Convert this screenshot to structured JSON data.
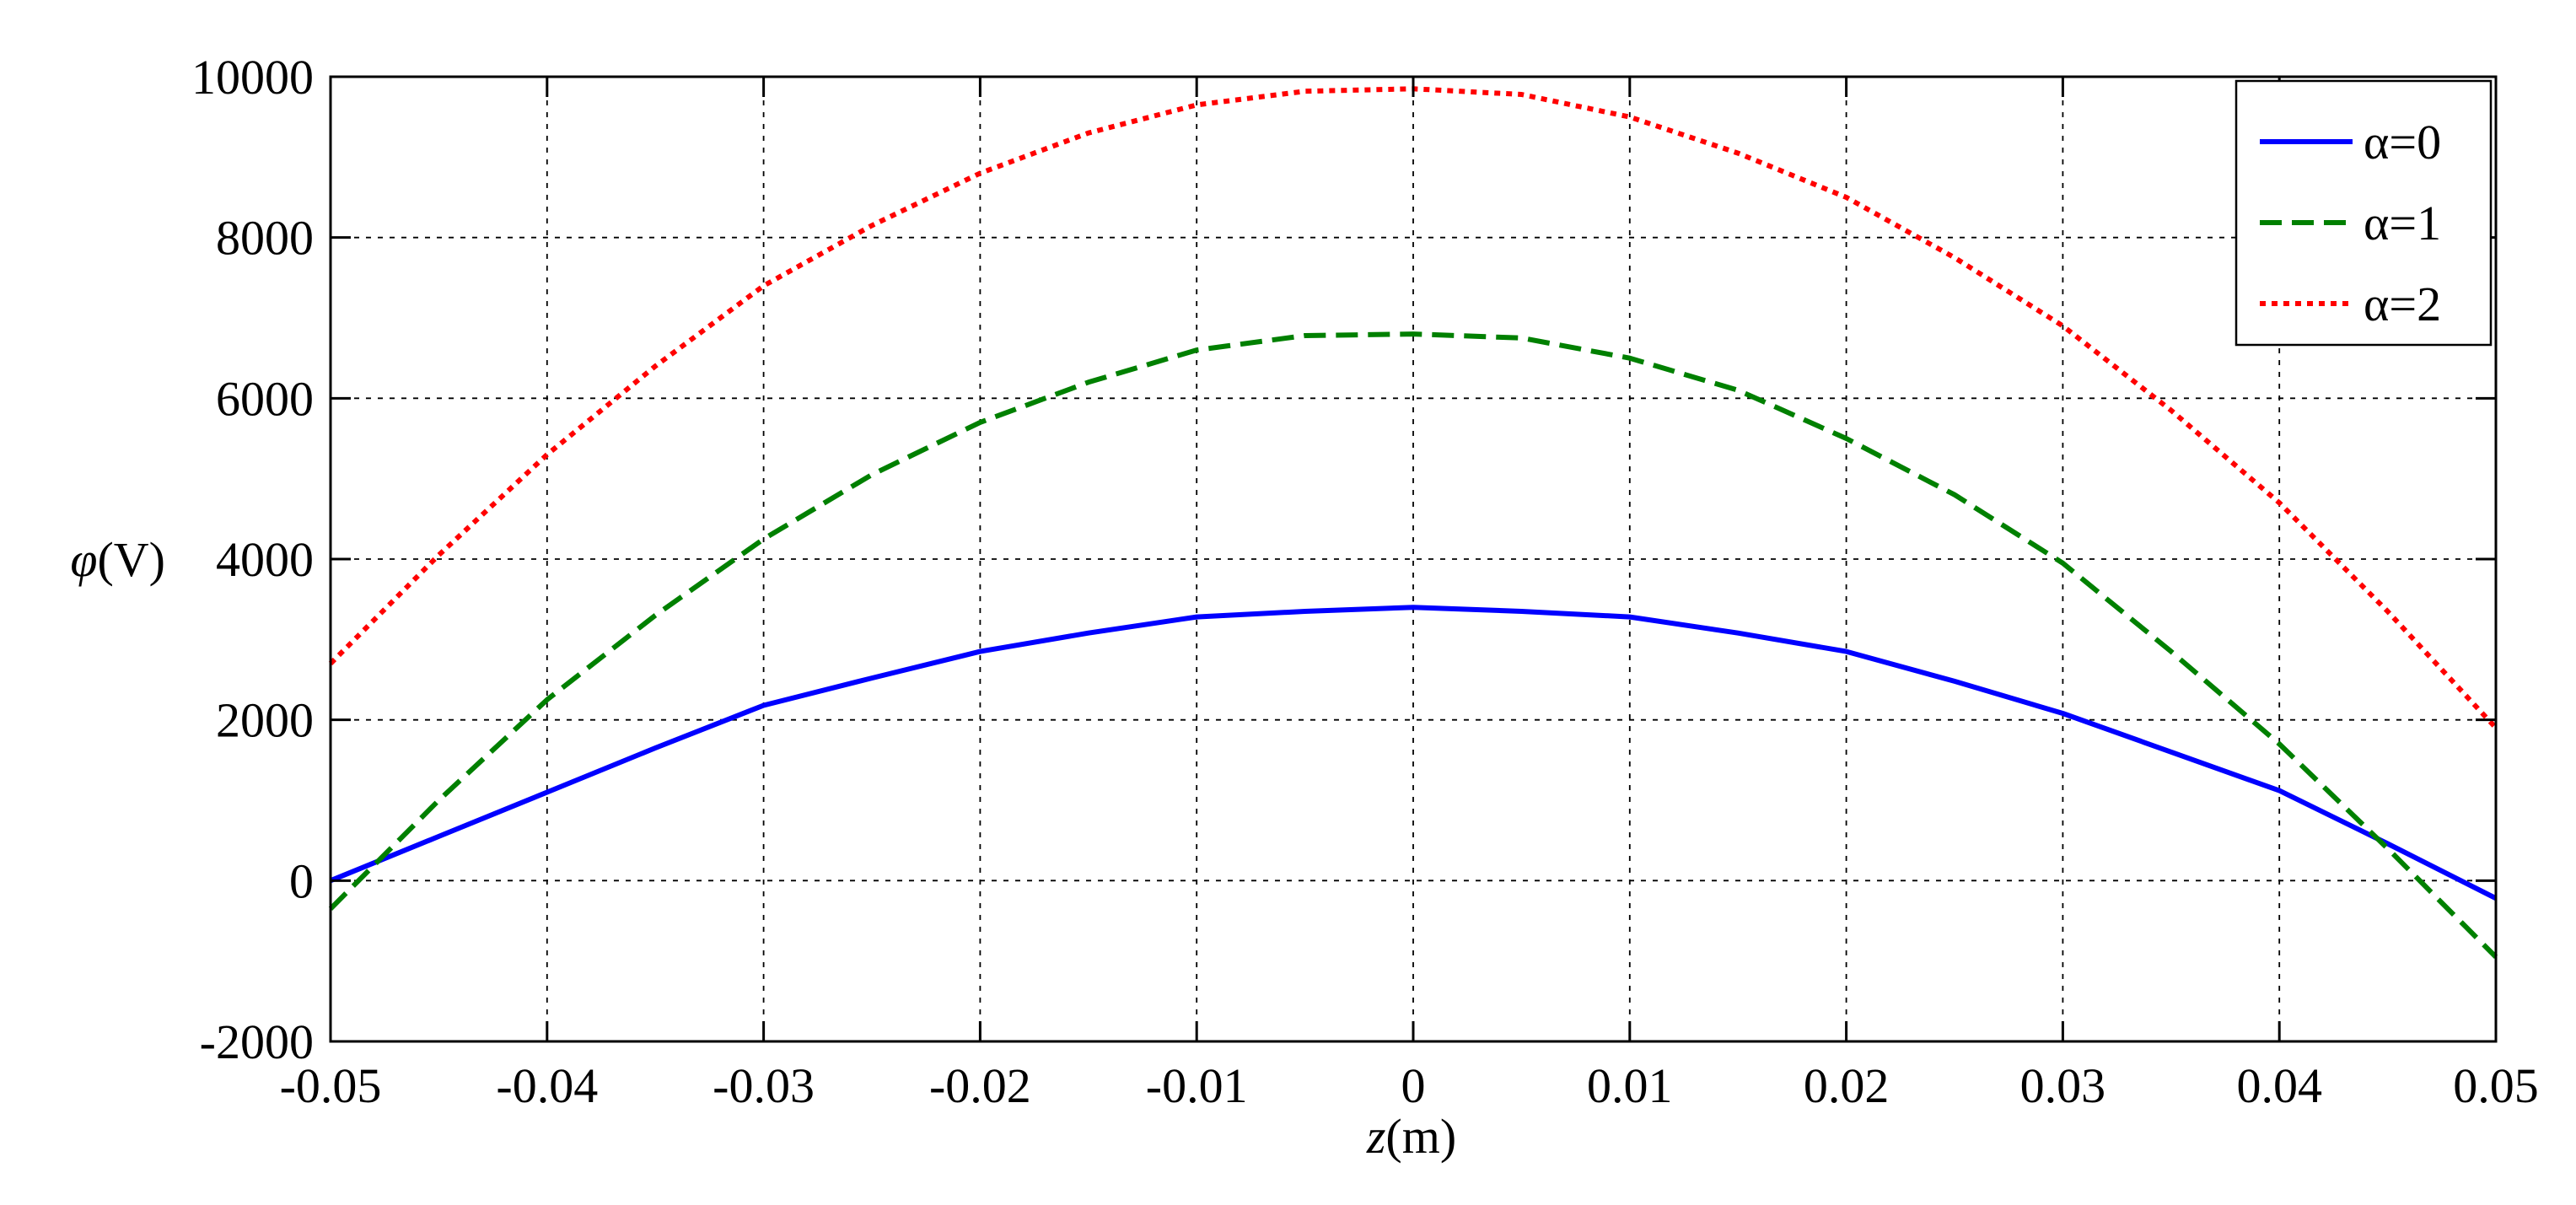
{
  "chart_data": {
    "type": "line",
    "title": "",
    "xlabel": {
      "var": "z",
      "unit": "(m)"
    },
    "ylabel": {
      "var": "φ",
      "unit": "(V)"
    },
    "xlim": [
      -0.05,
      0.05
    ],
    "ylim": [
      -2000,
      10000
    ],
    "grid": true,
    "legend_position": "top-right",
    "x_ticks": [
      -0.05,
      -0.04,
      -0.03,
      -0.02,
      -0.01,
      0,
      0.01,
      0.02,
      0.03,
      0.04,
      0.05
    ],
    "x_tick_labels": [
      "-0.05",
      "-0.04",
      "-0.03",
      "-0.02",
      "-0.01",
      "0",
      "0.01",
      "0.02",
      "0.03",
      "0.04",
      "0.05"
    ],
    "y_ticks": [
      -2000,
      0,
      2000,
      4000,
      6000,
      8000,
      10000
    ],
    "y_tick_labels": [
      "-2000",
      "0",
      "2000",
      "4000",
      "6000",
      "8000",
      "10000"
    ],
    "x": [
      -0.05,
      -0.045,
      -0.04,
      -0.035,
      -0.03,
      -0.025,
      -0.02,
      -0.015,
      -0.01,
      -0.005,
      0,
      0.005,
      0.01,
      0.015,
      0.02,
      0.025,
      0.03,
      0.035,
      0.04,
      0.045,
      0.05
    ],
    "series": [
      {
        "name": "α=0",
        "color": "#0000ff",
        "style": "solid",
        "values": [
          0,
          550,
          1100,
          1650,
          2180,
          2520,
          2850,
          3080,
          3280,
          3350,
          3400,
          3350,
          3280,
          3080,
          2850,
          2480,
          2080,
          1600,
          1120,
          460,
          -220
        ]
      },
      {
        "name": "α=1",
        "color": "#008000",
        "style": "dashed",
        "values": [
          -350,
          1000,
          2250,
          3300,
          4250,
          5050,
          5700,
          6200,
          6600,
          6780,
          6800,
          6750,
          6500,
          6100,
          5500,
          4800,
          3950,
          2850,
          1700,
          400,
          -950
        ]
      },
      {
        "name": "α=2",
        "color": "#ff0000",
        "style": "dotted",
        "values": [
          2700,
          4050,
          5300,
          6400,
          7400,
          8150,
          8800,
          9300,
          9650,
          9820,
          9850,
          9780,
          9500,
          9050,
          8500,
          7750,
          6900,
          5850,
          4700,
          3350,
          1900
        ]
      }
    ]
  }
}
